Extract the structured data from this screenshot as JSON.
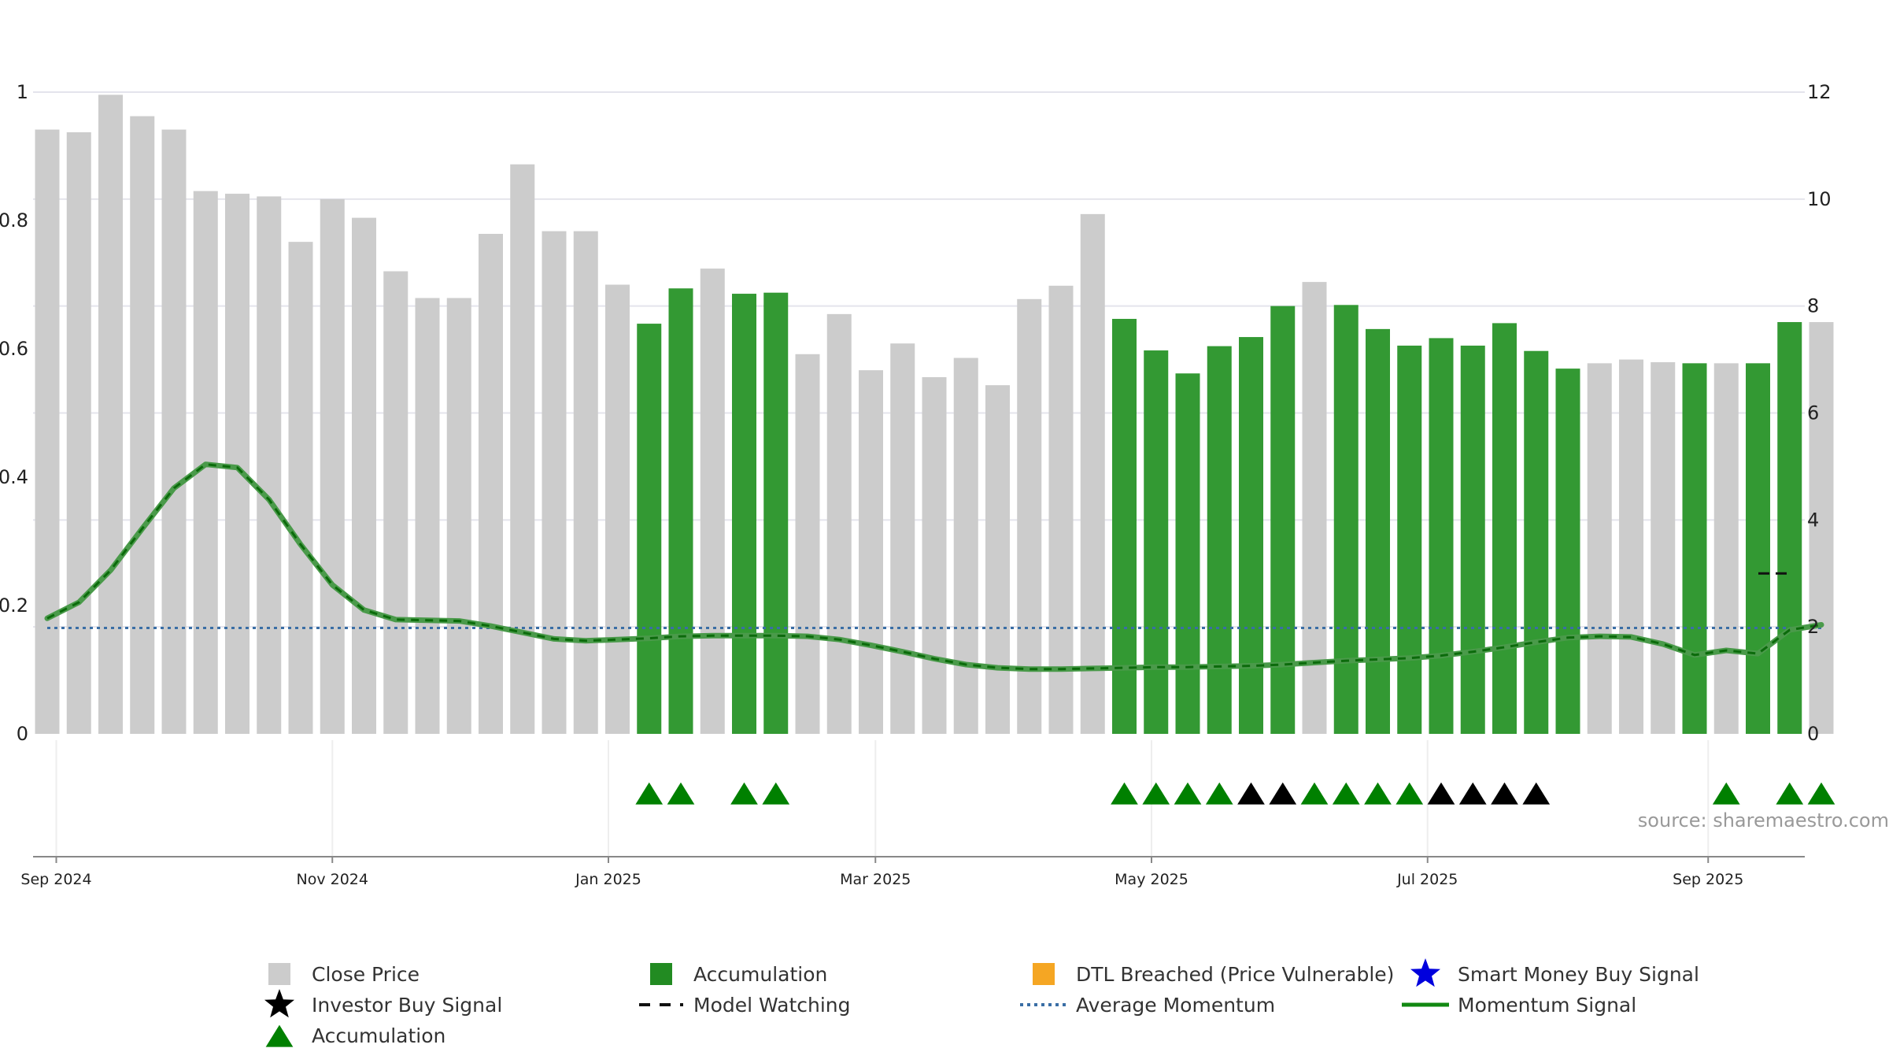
{
  "chart_data": {
    "type": "bar",
    "source_text": "source: sharemaestro.com",
    "x_tick_labels": [
      "Sep 2024",
      "Nov 2024",
      "Jan 2025",
      "Mar 2025",
      "May 2025",
      "Jul 2025",
      "Sep 2025"
    ],
    "left_axis": {
      "range": [
        0,
        1
      ],
      "ticks": [
        "0",
        "0.2",
        "0.4",
        "0.6",
        "0.8",
        "1"
      ]
    },
    "right_axis": {
      "range": [
        0,
        12
      ],
      "ticks": [
        "0",
        "2",
        "4",
        "6",
        "8",
        "10",
        "12"
      ]
    },
    "grid": true,
    "colors": {
      "close_price": "#cccccc",
      "accumulation": "#339933",
      "momentum": "#2e8b2e",
      "average_momentum": "#3a6ea5",
      "triangle_green": "#008000",
      "triangle_black": "#000000",
      "dtl": "#f5a623",
      "smart_money": "#0000dd"
    },
    "weeks": [
      "2024-08-30",
      "2024-09-06",
      "2024-09-13",
      "2024-09-20",
      "2024-09-27",
      "2024-10-04",
      "2024-10-11",
      "2024-10-18",
      "2024-10-25",
      "2024-11-01",
      "2024-11-08",
      "2024-11-15",
      "2024-11-22",
      "2024-11-29",
      "2024-12-06",
      "2024-12-13",
      "2024-12-20",
      "2024-12-27",
      "2025-01-03",
      "2025-01-10",
      "2025-01-17",
      "2025-01-24",
      "2025-01-31",
      "2025-02-07",
      "2025-02-14",
      "2025-02-21",
      "2025-02-28",
      "2025-03-07",
      "2025-03-14",
      "2025-03-21",
      "2025-03-28",
      "2025-04-04",
      "2025-04-11",
      "2025-04-18",
      "2025-04-25",
      "2025-05-02",
      "2025-05-09",
      "2025-05-16",
      "2025-05-23",
      "2025-05-30",
      "2025-06-06",
      "2025-06-13",
      "2025-06-20",
      "2025-06-27",
      "2025-07-04",
      "2025-07-11",
      "2025-07-18",
      "2025-07-25",
      "2025-08-01",
      "2025-08-08",
      "2025-08-15",
      "2025-08-22",
      "2025-08-29",
      "2025-09-05",
      "2025-09-12",
      "2025-09-19",
      "2025-09-26"
    ],
    "close_price": [
      11.3,
      11.25,
      11.95,
      11.55,
      11.3,
      10.15,
      10.1,
      10.05,
      9.2,
      10.0,
      9.65,
      8.65,
      8.15,
      8.15,
      9.35,
      10.65,
      9.4,
      9.4,
      8.4,
      7.67,
      8.33,
      8.7,
      8.23,
      8.25,
      7.1,
      7.85,
      6.8,
      7.3,
      6.67,
      7.03,
      6.52,
      8.13,
      8.38,
      9.72,
      7.76,
      7.17,
      6.74,
      7.25,
      7.42,
      8.0,
      8.45,
      8.02,
      7.57,
      7.26,
      7.4,
      7.26,
      7.68,
      7.16,
      6.83,
      6.93,
      7.0,
      6.95,
      6.93,
      6.93,
      6.93,
      7.7,
      7.7
    ],
    "accumulation_bar": [
      false,
      false,
      false,
      false,
      false,
      false,
      false,
      false,
      false,
      false,
      false,
      false,
      false,
      false,
      false,
      false,
      false,
      false,
      false,
      true,
      true,
      false,
      true,
      true,
      false,
      false,
      false,
      false,
      false,
      false,
      false,
      false,
      false,
      false,
      true,
      true,
      true,
      true,
      true,
      true,
      false,
      true,
      true,
      true,
      true,
      true,
      true,
      true,
      true,
      false,
      false,
      false,
      true,
      false,
      true,
      true,
      false
    ],
    "momentum": [
      0.18,
      0.205,
      0.255,
      0.32,
      0.383,
      0.42,
      0.415,
      0.365,
      0.295,
      0.232,
      0.193,
      0.178,
      0.177,
      0.176,
      0.168,
      0.158,
      0.148,
      0.145,
      0.147,
      0.149,
      0.152,
      0.153,
      0.153,
      0.153,
      0.152,
      0.147,
      0.138,
      0.128,
      0.117,
      0.108,
      0.103,
      0.101,
      0.101,
      0.102,
      0.103,
      0.104,
      0.104,
      0.105,
      0.106,
      0.108,
      0.111,
      0.114,
      0.116,
      0.118,
      0.122,
      0.128,
      0.135,
      0.143,
      0.15,
      0.152,
      0.151,
      0.14,
      0.123,
      0.13,
      0.125,
      0.162,
      0.17
    ],
    "average_momentum": 0.165,
    "model_watching": {
      "y": 0.25
    },
    "accumulation_markers": [
      19,
      20,
      22,
      23,
      34,
      35,
      36,
      37,
      40,
      41,
      42,
      43,
      53,
      55,
      56
    ],
    "investor_buy_markers": [
      38,
      39,
      44,
      45,
      46,
      47
    ],
    "legend": [
      {
        "label": "Close Price",
        "icon": "grey-square-icon"
      },
      {
        "label": "Accumulation",
        "icon": "green-square-icon"
      },
      {
        "label": "DTL Breached (Price Vulnerable)",
        "icon": "orange-square-icon"
      },
      {
        "label": "Smart Money Buy Signal",
        "icon": "blue-star-icon"
      },
      {
        "label": "Investor Buy Signal",
        "icon": "black-star-icon"
      },
      {
        "label": "Model Watching",
        "icon": "dashed-line-icon"
      },
      {
        "label": "Average Momentum",
        "icon": "dotted-line-icon"
      },
      {
        "label": "Momentum Signal",
        "icon": "solid-line-icon"
      },
      {
        "label": "Accumulation",
        "icon": "green-triangle-icon"
      }
    ]
  }
}
